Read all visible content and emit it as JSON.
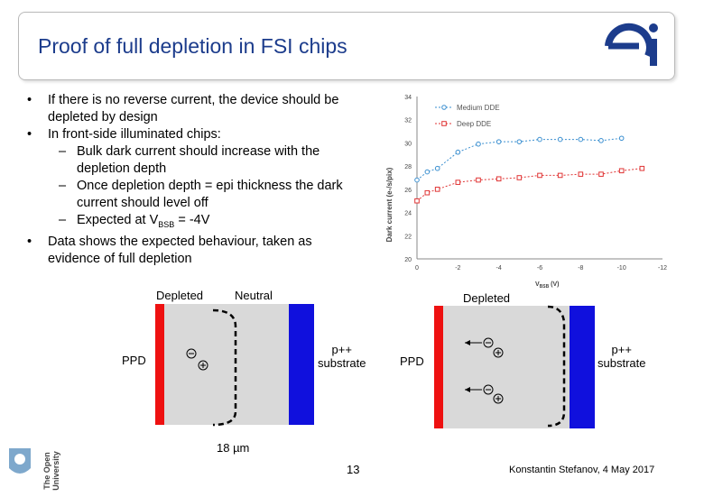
{
  "slide": {
    "title": "Proof of full depletion in FSI chips",
    "bullets": [
      {
        "level": 1,
        "text": "If there is no reverse current, the device should be depleted by design"
      },
      {
        "level": 1,
        "text": "In front-side illuminated chips:"
      },
      {
        "level": 2,
        "text": "Bulk dark current should increase with the depletion depth"
      },
      {
        "level": 2,
        "text": "Once depletion depth = epi thickness the dark current should level off"
      },
      {
        "level": 2,
        "text_prefix": "Expected at V",
        "text_sub": "BSB",
        "text_suffix": " = -4V"
      },
      {
        "level": 1,
        "text": "Data shows the expected behaviour, taken as evidence of full depletion"
      }
    ],
    "page_number": "13",
    "footer": "Konstantin Stefanov, 4 May 2017",
    "ou_logo_text": "The Open University",
    "ei_logo_text": "ei"
  },
  "diagram": {
    "left": {
      "depleted": "Depleted",
      "neutral": "Neutral",
      "ppd": "PPD",
      "substrate_l1": "p++",
      "substrate_l2": "substrate",
      "width_label": "18 µm"
    },
    "right": {
      "depleted": "Depleted",
      "ppd": "PPD",
      "substrate_l1": "p++",
      "substrate_l2": "substrate"
    }
  },
  "chart_data": {
    "type": "line",
    "ylabel": "Dark current (e-/s/pix)",
    "xlabel_prefix": "V",
    "xlabel_sub": "BSB",
    "xlabel_suffix": " (V)",
    "xlim": [
      0,
      -12
    ],
    "ylim": [
      20,
      34
    ],
    "xticks": [
      "0",
      "-2",
      "-4",
      "-6",
      "-8",
      "-10",
      "-12"
    ],
    "yticks": [
      "20",
      "22",
      "24",
      "26",
      "28",
      "30",
      "32",
      "34"
    ],
    "legend_position": "top-left",
    "series": [
      {
        "name": "Medium DDE",
        "color": "#3a8fd0",
        "marker": "circle",
        "x": [
          0,
          -0.5,
          -1,
          -2,
          -3,
          -4,
          -5,
          -6,
          -7,
          -8,
          -9,
          -10
        ],
        "y": [
          26.8,
          27.5,
          27.8,
          29.2,
          29.9,
          30.1,
          30.1,
          30.3,
          30.3,
          30.3,
          30.2,
          30.4
        ]
      },
      {
        "name": "Deep DDE",
        "color": "#e03434",
        "marker": "square",
        "x": [
          0,
          -0.5,
          -1,
          -2,
          -3,
          -4,
          -5,
          -6,
          -7,
          -8,
          -9,
          -10,
          -11
        ],
        "y": [
          25.0,
          25.7,
          26.0,
          26.6,
          26.8,
          26.9,
          27.0,
          27.2,
          27.2,
          27.3,
          27.3,
          27.6,
          27.8
        ]
      }
    ],
    "colors": {
      "wafer": "#d9d9d9",
      "ppd": "#ee1111",
      "substrate": "#1010dd"
    }
  }
}
